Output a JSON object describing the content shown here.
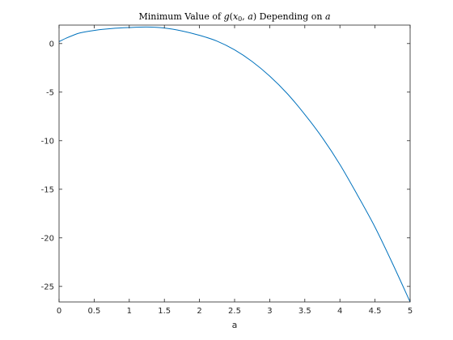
{
  "chart_data": {
    "type": "line",
    "title_parts": [
      "Minimum Value of ",
      "g",
      "(",
      "x",
      "0",
      ", ",
      "a",
      ") Depending on ",
      "a"
    ],
    "xlabel": "a",
    "ylabel": "",
    "xlim": [
      0,
      5
    ],
    "ylim": [
      -26.6,
      1.9
    ],
    "xticks": [
      0,
      0.5,
      1,
      1.5,
      2,
      2.5,
      3,
      3.5,
      4,
      4.5,
      5
    ],
    "xtick_labels": [
      "0",
      "0.5",
      "1",
      "1.5",
      "2",
      "2.5",
      "3",
      "3.5",
      "4",
      "4.5",
      "5"
    ],
    "yticks": [
      0,
      -5,
      -10,
      -15,
      -20,
      -25
    ],
    "ytick_labels": [
      "0",
      "-5",
      "-10",
      "-15",
      "-20",
      "-25"
    ],
    "grid": false,
    "line_color": "#0072BD",
    "series": [
      {
        "x": [
          0,
          0.1,
          0.2,
          0.3,
          0.5,
          0.75,
          1.0,
          1.25,
          1.5,
          1.75,
          2.0,
          2.25,
          2.5,
          2.75,
          3.0,
          3.25,
          3.5,
          3.75,
          4.0,
          4.25,
          4.5,
          4.75,
          5.0
        ],
        "y": [
          0.2,
          0.55,
          0.85,
          1.1,
          1.35,
          1.55,
          1.65,
          1.7,
          1.6,
          1.3,
          0.85,
          0.25,
          -0.65,
          -1.85,
          -3.35,
          -5.15,
          -7.3,
          -9.7,
          -12.45,
          -15.6,
          -18.9,
          -22.65,
          -26.6
        ]
      }
    ]
  }
}
